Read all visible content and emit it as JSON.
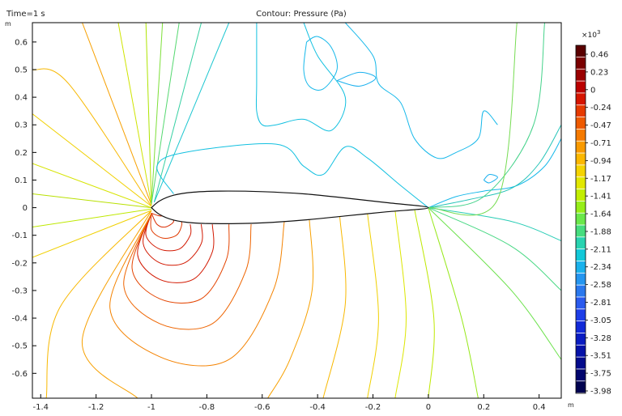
{
  "chart_data": {
    "type": "contour",
    "header_left": "Time=1 s",
    "title": "Contour: Pressure (Pa)",
    "x_unit": "m",
    "y_unit": "m",
    "xlim": [
      -1.43,
      0.48
    ],
    "ylim": [
      -0.69,
      0.67
    ],
    "x_ticks": [
      -1.4,
      -1.2,
      -1,
      -0.8,
      -0.6,
      -0.4,
      -0.2,
      0,
      0.2,
      0.4
    ],
    "x_tick_labels": [
      "-1.4",
      "-1.2",
      "-1",
      "-0.8",
      "-0.6",
      "-0.4",
      "-0.2",
      "0",
      "0.2",
      "0.4"
    ],
    "y_ticks": [
      0.6,
      0.5,
      0.4,
      0.3,
      0.2,
      0.1,
      0,
      -0.1,
      -0.2,
      -0.3,
      -0.4,
      -0.5,
      -0.6
    ],
    "y_tick_labels": [
      "0.6",
      "0.5",
      "0.4",
      "0.3",
      "0.2",
      "0.1",
      "0",
      "-0.1",
      "-0.2",
      "-0.3",
      "-0.4",
      "-0.5",
      "-0.6"
    ],
    "airfoil": {
      "leading_edge": [
        -1.0,
        0.0
      ],
      "trailing_edge": [
        0.0,
        0.0
      ],
      "upper": [
        [
          -1.0,
          0.0
        ],
        [
          -0.97,
          0.025
        ],
        [
          -0.92,
          0.045
        ],
        [
          -0.85,
          0.056
        ],
        [
          -0.75,
          0.06
        ],
        [
          -0.6,
          0.058
        ],
        [
          -0.45,
          0.05
        ],
        [
          -0.3,
          0.035
        ],
        [
          -0.15,
          0.018
        ],
        [
          0.0,
          0.0
        ]
      ],
      "lower": [
        [
          -1.0,
          0.0
        ],
        [
          -0.97,
          -0.025
        ],
        [
          -0.92,
          -0.045
        ],
        [
          -0.85,
          -0.055
        ],
        [
          -0.75,
          -0.058
        ],
        [
          -0.6,
          -0.055
        ],
        [
          -0.45,
          -0.045
        ],
        [
          -0.3,
          -0.03
        ],
        [
          -0.15,
          -0.015
        ],
        [
          0.0,
          0.0
        ]
      ]
    },
    "colorbar": {
      "multiplier": "×10",
      "multiplier_exp": "3",
      "tick_labels": [
        "0.46",
        "0.23",
        "0",
        "-0.24",
        "-0.47",
        "-0.71",
        "-0.94",
        "-1.17",
        "-1.41",
        "-1.64",
        "-1.88",
        "-2.11",
        "-2.34",
        "-2.58",
        "-2.81",
        "-3.05",
        "-3.28",
        "-3.51",
        "-3.75",
        "-3.98"
      ],
      "tick_values": [
        0.46,
        0.23,
        0,
        -0.24,
        -0.47,
        -0.71,
        -0.94,
        -1.17,
        -1.41,
        -1.64,
        -1.88,
        -2.11,
        -2.34,
        -2.58,
        -2.81,
        -3.05,
        -3.28,
        -3.51,
        -3.75,
        -3.98
      ],
      "colors": [
        "#5a0000",
        "#7a0000",
        "#9a0000",
        "#bb0000",
        "#d61500",
        "#e63a00",
        "#ee5a00",
        "#f57a00",
        "#f99a00",
        "#fcb800",
        "#f5d400",
        "#e2e800",
        "#c2ee00",
        "#96ee18",
        "#6ae84a",
        "#46dd7e",
        "#28d3b0",
        "#12c8d8",
        "#1ab2ec",
        "#2596f0",
        "#2a78ee",
        "#2a5aee",
        "#1e3ee8",
        "#122ad8",
        "#0a1cc2",
        "#0612a8",
        "#030b8c",
        "#02066e",
        "#010350"
      ]
    },
    "contours": [
      {
        "level": -0.47,
        "color": "#d92b00",
        "points": [
          [
            -1.0,
            -0.02
          ],
          [
            -0.98,
            -0.06
          ],
          [
            -0.95,
            -0.07
          ],
          [
            -0.92,
            -0.05
          ],
          [
            -0.94,
            -0.03
          ],
          [
            -0.97,
            -0.03
          ],
          [
            -1.0,
            -0.02
          ]
        ]
      },
      {
        "level": -0.24,
        "color": "#e03a00",
        "points": [
          [
            -1.0,
            -0.02
          ],
          [
            -1.0,
            -0.08
          ],
          [
            -0.96,
            -0.11
          ],
          [
            -0.91,
            -0.1
          ],
          [
            -0.89,
            -0.06
          ],
          [
            -0.9,
            -0.04
          ]
        ]
      },
      {
        "level": -0.71,
        "color": "#d21800",
        "points": [
          [
            -1.0,
            -0.02
          ],
          [
            -1.02,
            -0.1
          ],
          [
            -0.97,
            -0.15
          ],
          [
            -0.9,
            -0.15
          ],
          [
            -0.86,
            -0.1
          ],
          [
            -0.86,
            -0.06
          ]
        ]
      },
      {
        "level": -0.71,
        "color": "#d21800",
        "points": [
          [
            -1.0,
            -0.02
          ],
          [
            -1.03,
            -0.13
          ],
          [
            -0.97,
            -0.2
          ],
          [
            -0.88,
            -0.2
          ],
          [
            -0.82,
            -0.13
          ],
          [
            -0.82,
            -0.06
          ]
        ]
      },
      {
        "level": -0.71,
        "color": "#d21800",
        "points": [
          [
            -1.0,
            -0.02
          ],
          [
            -1.05,
            -0.17
          ],
          [
            -0.97,
            -0.26
          ],
          [
            -0.85,
            -0.26
          ],
          [
            -0.78,
            -0.16
          ],
          [
            -0.78,
            -0.06
          ]
        ]
      },
      {
        "level": -0.94,
        "color": "#e44400",
        "points": [
          [
            -1.0,
            -0.02
          ],
          [
            -1.07,
            -0.22
          ],
          [
            -0.97,
            -0.33
          ],
          [
            -0.82,
            -0.33
          ],
          [
            -0.73,
            -0.19
          ],
          [
            -0.72,
            -0.06
          ]
        ]
      },
      {
        "level": -1.17,
        "color": "#ee6400",
        "points": [
          [
            -1.0,
            -0.02
          ],
          [
            -1.1,
            -0.28
          ],
          [
            -0.97,
            -0.42
          ],
          [
            -0.78,
            -0.42
          ],
          [
            -0.66,
            -0.23
          ],
          [
            -0.64,
            -0.06
          ]
        ]
      },
      {
        "level": -1.41,
        "color": "#f48200",
        "points": [
          [
            -1.0,
            -0.02
          ],
          [
            -1.15,
            -0.36
          ],
          [
            -0.97,
            -0.54
          ],
          [
            -0.72,
            -0.55
          ],
          [
            -0.56,
            -0.3
          ],
          [
            -0.52,
            -0.05
          ]
        ]
      },
      {
        "level": -1.64,
        "color": "#f7a000",
        "points": [
          [
            -1.0,
            -0.01
          ],
          [
            -1.25,
            -0.48
          ],
          [
            -1.05,
            -0.69
          ]
        ]
      },
      {
        "level": -1.64,
        "color": "#f7a000",
        "points": [
          [
            -0.43,
            -0.04
          ],
          [
            -0.42,
            -0.3
          ],
          [
            -0.5,
            -0.55
          ],
          [
            -0.58,
            -0.69
          ]
        ]
      },
      {
        "level": -1.88,
        "color": "#f8b800",
        "points": [
          [
            -1.0,
            -0.01
          ],
          [
            -1.33,
            -0.36
          ],
          [
            -1.38,
            -0.69
          ]
        ]
      },
      {
        "level": -1.88,
        "color": "#f8b800",
        "points": [
          [
            -0.32,
            -0.03
          ],
          [
            -0.3,
            -0.35
          ],
          [
            -0.38,
            -0.69
          ]
        ]
      },
      {
        "level": -2.11,
        "color": "#f0d000",
        "points": [
          [
            -1.0,
            -0.01
          ],
          [
            -1.43,
            -0.18
          ]
        ]
      },
      {
        "level": -2.11,
        "color": "#f0d000",
        "points": [
          [
            -0.22,
            -0.02
          ],
          [
            -0.18,
            -0.4
          ],
          [
            -0.22,
            -0.69
          ]
        ]
      },
      {
        "level": -2.34,
        "color": "#dce600",
        "points": [
          [
            -0.12,
            -0.01
          ],
          [
            -0.08,
            -0.4
          ],
          [
            -0.12,
            -0.69
          ]
        ]
      },
      {
        "level": -2.58,
        "color": "#bee800",
        "points": [
          [
            -1.0,
            -0.005
          ],
          [
            -1.43,
            -0.07
          ]
        ]
      },
      {
        "level": -2.58,
        "color": "#bee800",
        "points": [
          [
            -0.05,
            -0.005
          ],
          [
            0.02,
            -0.4
          ],
          [
            0.0,
            -0.69
          ]
        ]
      },
      {
        "level": -2.81,
        "color": "#96e818",
        "points": [
          [
            0.0,
            0.0
          ],
          [
            0.12,
            -0.4
          ],
          [
            0.18,
            -0.69
          ]
        ]
      },
      {
        "level": -3.05,
        "color": "#6ce24c",
        "points": [
          [
            0.0,
            0.0
          ],
          [
            0.3,
            -0.3
          ],
          [
            0.48,
            -0.55
          ]
        ]
      },
      {
        "level": -3.28,
        "color": "#48d884",
        "points": [
          [
            0.0,
            0.0
          ],
          [
            0.3,
            -0.14
          ],
          [
            0.48,
            -0.3
          ]
        ]
      },
      {
        "level": -3.51,
        "color": "#2acdb6",
        "points": [
          [
            0.0,
            0.0
          ],
          [
            0.3,
            -0.05
          ],
          [
            0.48,
            -0.12
          ]
        ]
      },
      {
        "level": -2.81,
        "color": "#b8e000",
        "points": [
          [
            -1.0,
            0.0
          ],
          [
            -1.43,
            0.05
          ]
        ]
      },
      {
        "level": -3.05,
        "color": "#d6e400",
        "points": [
          [
            -1.0,
            0.0
          ],
          [
            -1.43,
            0.16
          ]
        ]
      },
      {
        "level": -3.28,
        "color": "#f0d000",
        "points": [
          [
            -1.0,
            0.005
          ],
          [
            -1.43,
            0.34
          ]
        ]
      },
      {
        "level": -3.51,
        "color": "#f7b800",
        "points": [
          [
            -1.0,
            0.005
          ],
          [
            -1.3,
            0.45
          ],
          [
            -1.43,
            0.5
          ]
        ]
      },
      {
        "level": -3.75,
        "color": "#f7a000",
        "points": [
          [
            -1.0,
            0.01
          ],
          [
            -1.25,
            0.67
          ]
        ]
      },
      {
        "level": -0.71,
        "color": "#cfe400",
        "points": [
          [
            -1.0,
            0.01
          ],
          [
            -1.12,
            0.67
          ]
        ]
      },
      {
        "level": -0.94,
        "color": "#aee400",
        "points": [
          [
            -1.0,
            0.01
          ],
          [
            -1.02,
            0.67
          ]
        ]
      },
      {
        "level": -1.17,
        "color": "#7ee03a",
        "points": [
          [
            -1.0,
            0.015
          ],
          [
            -0.96,
            0.67
          ]
        ]
      },
      {
        "level": -1.41,
        "color": "#55d870",
        "points": [
          [
            -1.0,
            0.015
          ],
          [
            -0.9,
            0.67
          ]
        ]
      },
      {
        "level": -1.64,
        "color": "#35d0a2",
        "points": [
          [
            -0.99,
            0.02
          ],
          [
            -0.82,
            0.67
          ]
        ]
      },
      {
        "level": -1.88,
        "color": "#1cc6d0",
        "points": [
          [
            -0.99,
            0.02
          ],
          [
            -0.72,
            0.67
          ]
        ]
      },
      {
        "level": -2.11,
        "color": "#12c0e0",
        "points": [
          [
            -0.92,
            0.05
          ],
          [
            -0.98,
            0.15
          ],
          [
            -0.88,
            0.2
          ],
          [
            -0.55,
            0.23
          ],
          [
            -0.45,
            0.15
          ],
          [
            -0.38,
            0.12
          ],
          [
            -0.3,
            0.22
          ],
          [
            -0.22,
            0.18
          ],
          [
            -0.1,
            0.08
          ],
          [
            0.0,
            0.0
          ]
        ]
      },
      {
        "level": -2.11,
        "color": "#12c0e0",
        "points": [
          [
            -0.62,
            0.67
          ],
          [
            -0.62,
            0.45
          ],
          [
            -0.62,
            0.35
          ],
          [
            -0.6,
            0.3
          ],
          [
            -0.55,
            0.3
          ],
          [
            -0.45,
            0.32
          ],
          [
            -0.35,
            0.28
          ],
          [
            -0.3,
            0.4
          ],
          [
            -0.4,
            0.55
          ],
          [
            -0.45,
            0.67
          ]
        ]
      },
      {
        "level": -2.34,
        "color": "#16b8ea",
        "points": [
          [
            -0.44,
            0.6
          ],
          [
            -0.45,
            0.5
          ],
          [
            -0.43,
            0.44
          ],
          [
            -0.38,
            0.43
          ],
          [
            -0.33,
            0.5
          ],
          [
            -0.35,
            0.58
          ],
          [
            -0.4,
            0.62
          ],
          [
            -0.44,
            0.6
          ]
        ]
      },
      {
        "level": -2.58,
        "color": "#1ab0ee",
        "points": [
          [
            -0.33,
            0.46
          ],
          [
            -0.25,
            0.49
          ],
          [
            -0.19,
            0.47
          ],
          [
            -0.25,
            0.44
          ],
          [
            -0.33,
            0.46
          ]
        ]
      },
      {
        "level": -2.34,
        "color": "#16b8ea",
        "points": [
          [
            -0.3,
            0.67
          ],
          [
            -0.2,
            0.55
          ],
          [
            -0.18,
            0.45
          ],
          [
            -0.1,
            0.38
          ],
          [
            -0.05,
            0.25
          ],
          [
            0.03,
            0.18
          ],
          [
            0.1,
            0.2
          ],
          [
            0.18,
            0.25
          ],
          [
            0.2,
            0.35
          ],
          [
            0.25,
            0.3
          ]
        ]
      },
      {
        "level": -2.34,
        "color": "#16b8ea",
        "points": [
          [
            0.0,
            0.0
          ],
          [
            0.1,
            0.04
          ],
          [
            0.2,
            0.06
          ],
          [
            0.32,
            0.08
          ],
          [
            0.42,
            0.15
          ],
          [
            0.48,
            0.25
          ]
        ]
      },
      {
        "level": -2.58,
        "color": "#1ab0ee",
        "points": [
          [
            0.2,
            0.1
          ],
          [
            0.22,
            0.12
          ],
          [
            0.25,
            0.11
          ],
          [
            0.22,
            0.09
          ],
          [
            0.2,
            0.1
          ]
        ]
      },
      {
        "level": -2.11,
        "color": "#26c4b8",
        "points": [
          [
            0.0,
            0.0
          ],
          [
            0.15,
            0.03
          ],
          [
            0.3,
            0.07
          ],
          [
            0.4,
            0.16
          ],
          [
            0.48,
            0.3
          ]
        ]
      },
      {
        "level": -1.88,
        "color": "#44d28a",
        "points": [
          [
            0.0,
            0.0
          ],
          [
            0.2,
            0.04
          ],
          [
            0.38,
            0.3
          ],
          [
            0.42,
            0.67
          ]
        ]
      },
      {
        "level": -1.64,
        "color": "#76dc52",
        "points": [
          [
            0.0,
            0.0
          ],
          [
            0.25,
            0.03
          ],
          [
            0.32,
            0.67
          ]
        ]
      }
    ]
  }
}
